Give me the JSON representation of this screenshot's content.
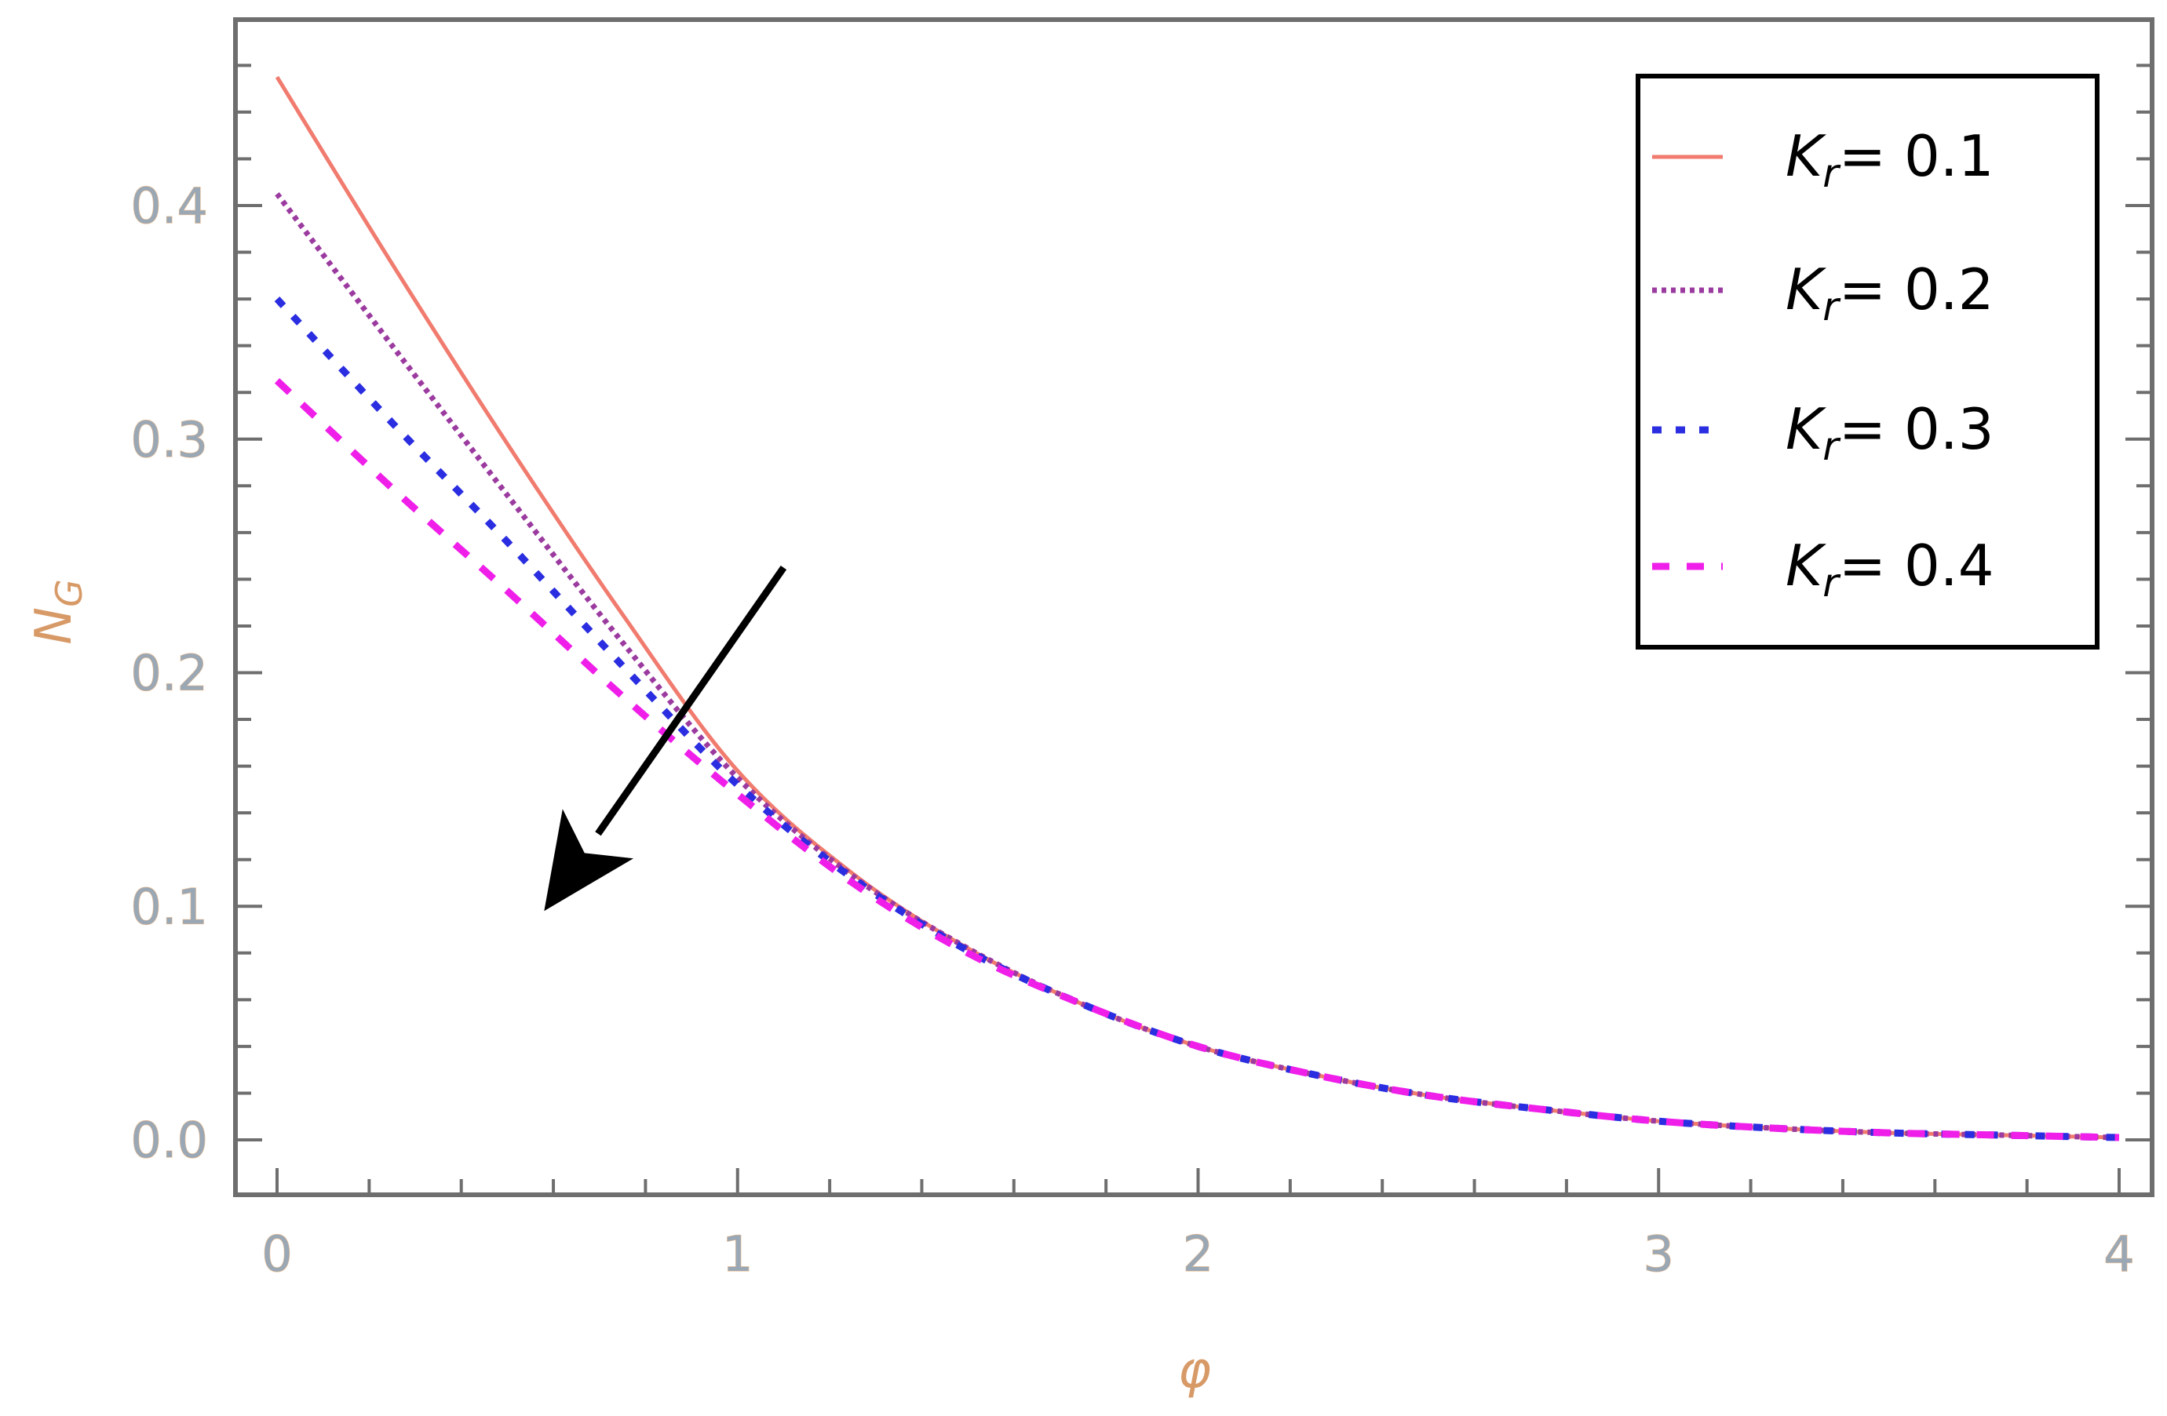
{
  "chart_data": {
    "type": "line",
    "xlabel": "φ",
    "ylabel": "N_G",
    "xlim": [
      0,
      4
    ],
    "ylim": [
      0,
      0.47
    ],
    "x_ticks": [
      "0",
      "1",
      "2",
      "3",
      "4"
    ],
    "y_ticks": [
      "0.0",
      "0.1",
      "0.2",
      "0.3",
      "0.4"
    ],
    "legend_position": "top-right",
    "x": [
      0,
      0.25,
      0.5,
      0.75,
      1.0,
      1.25,
      1.5,
      1.75,
      2.0,
      2.25,
      2.5,
      2.75,
      3.0,
      3.25,
      3.5,
      3.75,
      4.0
    ],
    "series": [
      {
        "name": "K_r = 0.1",
        "symbol": "K",
        "sub": "r",
        "value_text": "= 0.1",
        "color": "#f07b6e",
        "dash": "",
        "width": 5,
        "values": [
          0.455,
          0.375,
          0.298,
          0.225,
          0.158,
          0.114,
          0.082,
          0.058,
          0.04,
          0.028,
          0.019,
          0.013,
          0.008,
          0.005,
          0.003,
          0.002,
          0.001
        ]
      },
      {
        "name": "K_r = 0.2",
        "symbol": "K",
        "sub": "r",
        "value_text": "= 0.2",
        "color": "#9b3a9f",
        "dash": "6 6",
        "width": 7,
        "values": [
          0.405,
          0.34,
          0.276,
          0.213,
          0.155,
          0.113,
          0.082,
          0.058,
          0.04,
          0.028,
          0.019,
          0.013,
          0.008,
          0.005,
          0.003,
          0.002,
          0.001
        ]
      },
      {
        "name": "K_r = 0.3",
        "symbol": "K",
        "sub": "r",
        "value_text": "= 0.3",
        "color": "#2a2de0",
        "dash": "12 18",
        "width": 9,
        "values": [
          0.36,
          0.307,
          0.256,
          0.203,
          0.152,
          0.112,
          0.081,
          0.058,
          0.04,
          0.028,
          0.019,
          0.013,
          0.008,
          0.005,
          0.003,
          0.002,
          0.001
        ]
      },
      {
        "name": "K_r = 0.4",
        "symbol": "K",
        "sub": "r",
        "value_text": "= 0.4",
        "color": "#ef1ee9",
        "dash": "22 22",
        "width": 9,
        "values": [
          0.325,
          0.279,
          0.235,
          0.19,
          0.148,
          0.11,
          0.08,
          0.058,
          0.04,
          0.028,
          0.019,
          0.013,
          0.008,
          0.005,
          0.003,
          0.002,
          0.001
        ]
      }
    ],
    "arrow": {
      "from": [
        1.1,
        0.245
      ],
      "to": [
        0.58,
        0.098
      ]
    }
  }
}
